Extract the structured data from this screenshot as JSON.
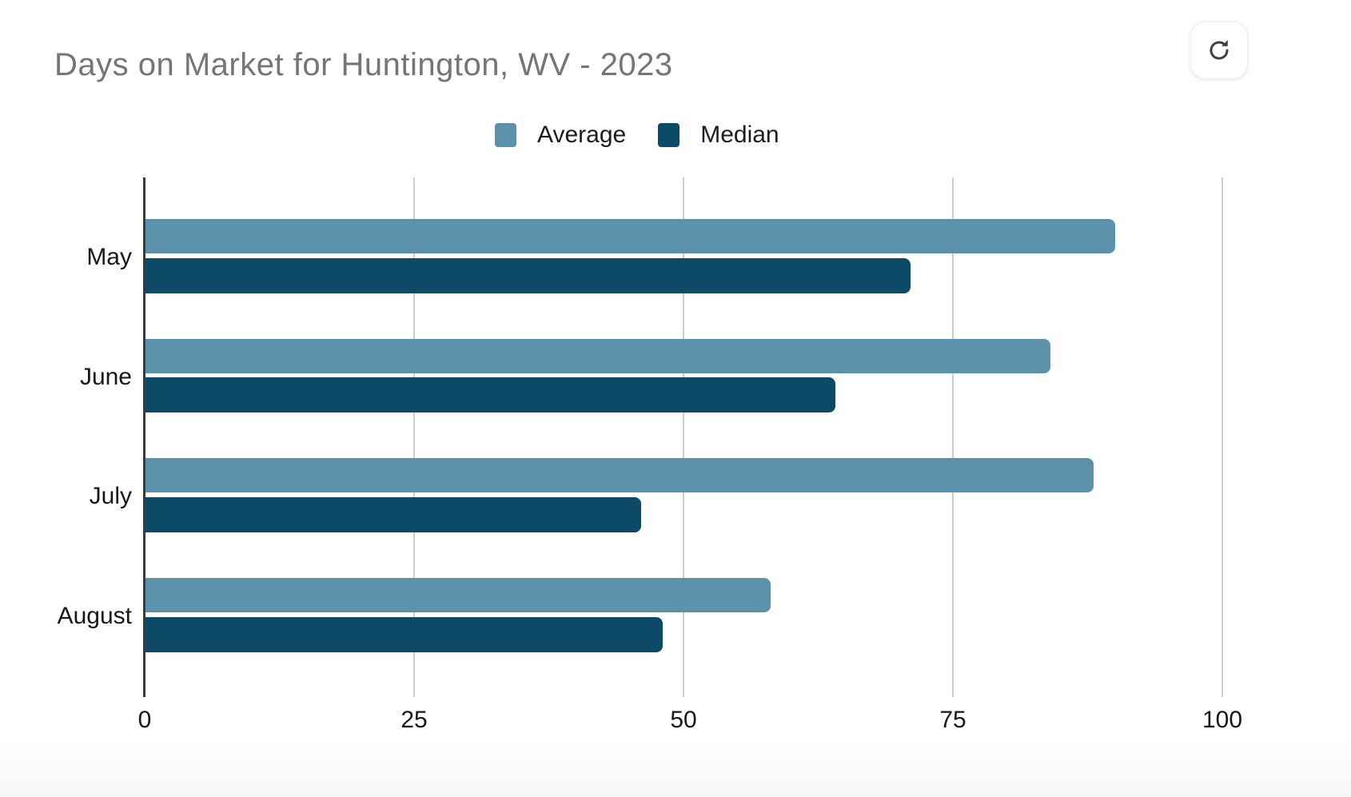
{
  "header": {
    "title": "Days on Market for Huntington, WV - 2023",
    "title_color": "#757575"
  },
  "toolbar": {
    "refresh_icon": "refresh-icon"
  },
  "legend": {
    "items": [
      {
        "label": "Average",
        "color": "#5C91AB"
      },
      {
        "label": "Median",
        "color": "#0C4A68"
      }
    ]
  },
  "chart_data": {
    "type": "bar",
    "orientation": "horizontal",
    "title": "Days on Market for Huntington, WV - 2023",
    "categories": [
      "May",
      "June",
      "July",
      "August"
    ],
    "series": [
      {
        "name": "Average",
        "color": "#5C91AB",
        "values": [
          90,
          84,
          88,
          58
        ]
      },
      {
        "name": "Median",
        "color": "#0C4A68",
        "values": [
          71,
          64,
          46,
          48
        ]
      }
    ],
    "xlabel": "",
    "ylabel": "",
    "x_ticks": [
      "0",
      "25",
      "50",
      "75",
      "100"
    ],
    "x_tick_values": [
      0,
      25,
      50,
      75,
      100
    ],
    "xlim": [
      0,
      107
    ],
    "grid": "vertical-gridlines",
    "legend_position": "top-center",
    "colors": {
      "gridline": "#cccccc",
      "axis_line": "#3b3b3b",
      "tick_label": "#171717",
      "category_label": "#171717"
    }
  }
}
